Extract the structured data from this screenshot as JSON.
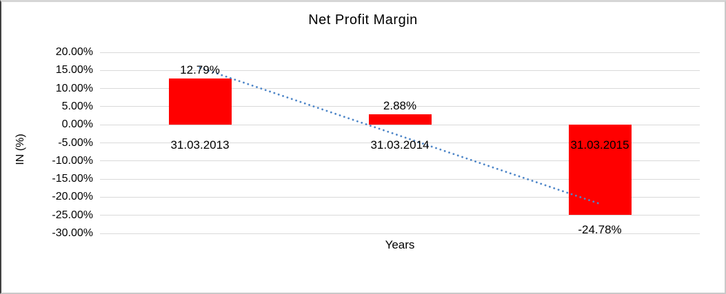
{
  "window": {
    "background": "#FFFFFF",
    "border_top_color": "#D6D6D6",
    "border_left_color": "#404040",
    "border_right_color": "#C9C9C9",
    "border_bottom_color": "#C9C9C9"
  },
  "chart_data": {
    "type": "bar",
    "title": "Net Profit Margin",
    "xlabel": "Years",
    "ylabel": "IN (%)",
    "categories": [
      "31.03.2013",
      "31.03.2014",
      "31.03.2015"
    ],
    "series": [
      {
        "name": "Net Profit Margin",
        "values": [
          12.79,
          2.88,
          -24.78
        ],
        "color": "#FF0000"
      }
    ],
    "data_labels": [
      "12.79%",
      "2.88%",
      "-24.78%"
    ],
    "y_tick_labels": [
      "20.00%",
      "15.00%",
      "10.00%",
      "5.00%",
      "0.00%",
      "-5.00%",
      "-10.00%",
      "-15.00%",
      "-20.00%",
      "-25.00%",
      "-30.00%"
    ],
    "y_tick_values": [
      20,
      15,
      10,
      5,
      0,
      -5,
      -10,
      -15,
      -20,
      -25,
      -30
    ],
    "ylim": [
      -30,
      20
    ],
    "grid": true,
    "gridline_color": "#D9D9D9",
    "legend": "none",
    "text_color": "#000000",
    "trendline": {
      "type": "linear",
      "style": "dotted",
      "color": "#4E86C8",
      "start_value": 15.75,
      "end_value": -21.82
    }
  }
}
